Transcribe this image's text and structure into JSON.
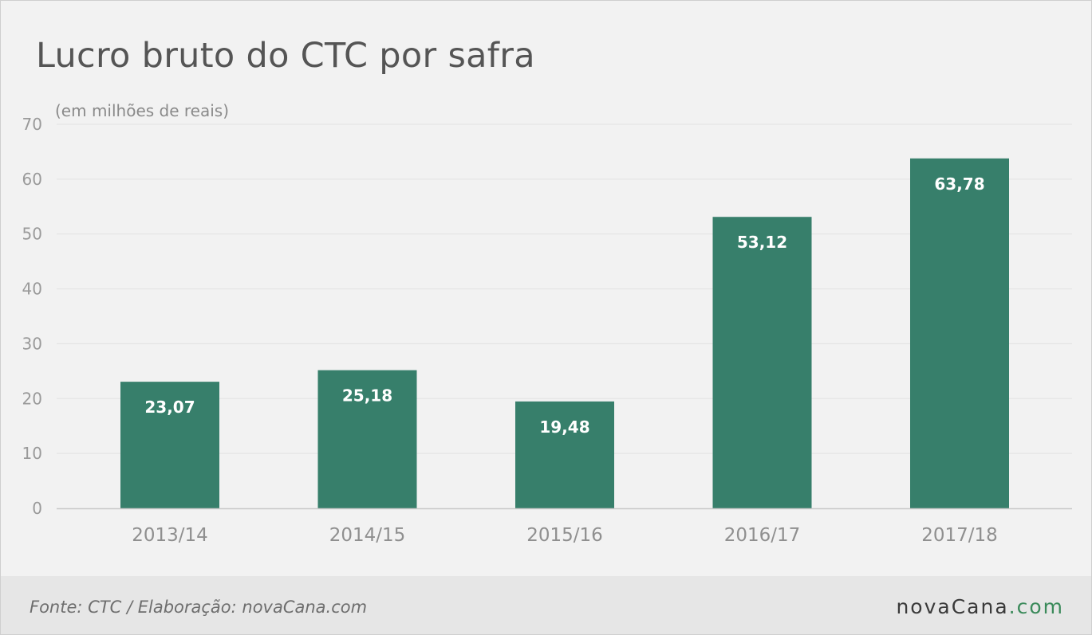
{
  "title": "Lucro bruto do CTC por safra",
  "chart_data": {
    "type": "bar",
    "title": "Lucro bruto do CTC por safra",
    "unit_label": "(em milhões de reais)",
    "categories": [
      "2013/14",
      "2014/15",
      "2015/16",
      "2016/17",
      "2017/18"
    ],
    "values": [
      23.07,
      25.18,
      19.48,
      53.12,
      63.78
    ],
    "value_labels": [
      "23,07",
      "25,18",
      "19,48",
      "53,12",
      "63,78"
    ],
    "ylim": [
      0,
      70
    ],
    "yticks": [
      0,
      10,
      20,
      30,
      40,
      50,
      60,
      70
    ],
    "grid": true,
    "bar_color": "#377f6b",
    "xlabel": "",
    "ylabel": ""
  },
  "footer": {
    "source": "Fonte: CTC / Elaboração: novaCana.com",
    "logo_main": "novaCana",
    "logo_suffix": ".com"
  },
  "colors": {
    "background": "#f2f2f2",
    "footer_background": "#e6e6e6",
    "grid": "#e2e2e2",
    "axis": "#c8c8c8",
    "logo_accent": "#3a8a5a"
  }
}
